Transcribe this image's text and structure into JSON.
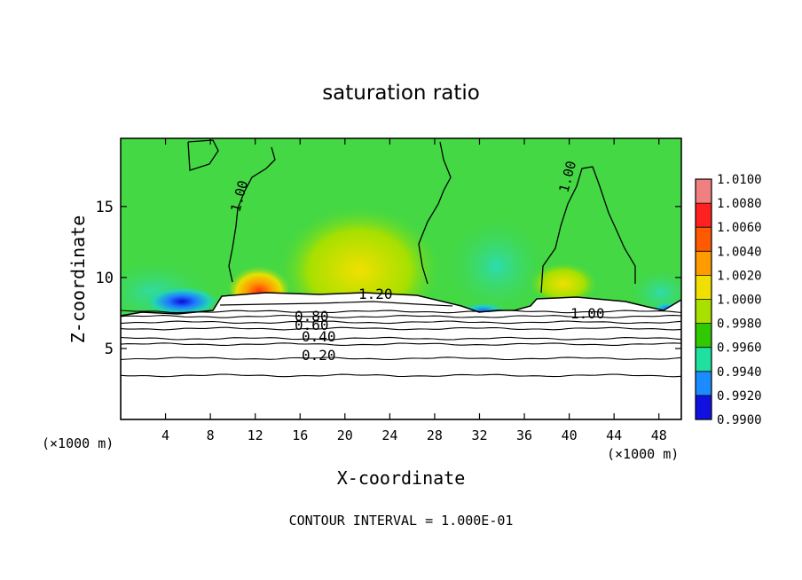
{
  "chart_data": {
    "type": "heatmap",
    "title": "saturation ratio",
    "xlabel": "X-coordinate",
    "ylabel": "Z-coordinate",
    "x_unit_label": "(×1000 m)",
    "y_unit_label": "(×1000 m)",
    "xlim": [
      0,
      50
    ],
    "ylim": [
      0,
      19.8
    ],
    "x_ticks": [
      4,
      8,
      12,
      16,
      20,
      24,
      28,
      32,
      36,
      40,
      44,
      48
    ],
    "y_ticks": [
      5,
      10,
      15
    ],
    "footer": "CONTOUR INTERVAL = 1.000E-01",
    "colorbar": {
      "range": [
        0.99,
        1.01
      ],
      "labels": [
        "1.0100",
        "1.0080",
        "1.0060",
        "1.0040",
        "1.0020",
        "1.0000",
        "0.9980",
        "0.9960",
        "0.9940",
        "0.9920",
        "0.9900"
      ],
      "colors": [
        "#f08080",
        "#ff2020",
        "#ff5a00",
        "#ff9a00",
        "#f0e000",
        "#a8e000",
        "#30c800",
        "#20e0a0",
        "#1a8cff",
        "#1010e0",
        "#6a0090"
      ]
    },
    "background_color": "#44d844",
    "contours": [
      {
        "level": 0.2,
        "label": "0.20",
        "z": 4.8
      },
      {
        "level": 0.4,
        "label": "0.40",
        "z": 6.1
      },
      {
        "level": 0.6,
        "label": "0.60",
        "z": 6.55
      },
      {
        "level": 0.8,
        "label": "0.80",
        "z": 7.0
      },
      {
        "level": 1.0,
        "label": "1.00"
      },
      {
        "level": 1.2,
        "label": "1.20"
      }
    ],
    "lower_contour_levels_z": [
      3.1,
      4.3,
      5.3,
      5.7,
      6.4,
      6.85,
      7.25,
      7.6
    ]
  }
}
